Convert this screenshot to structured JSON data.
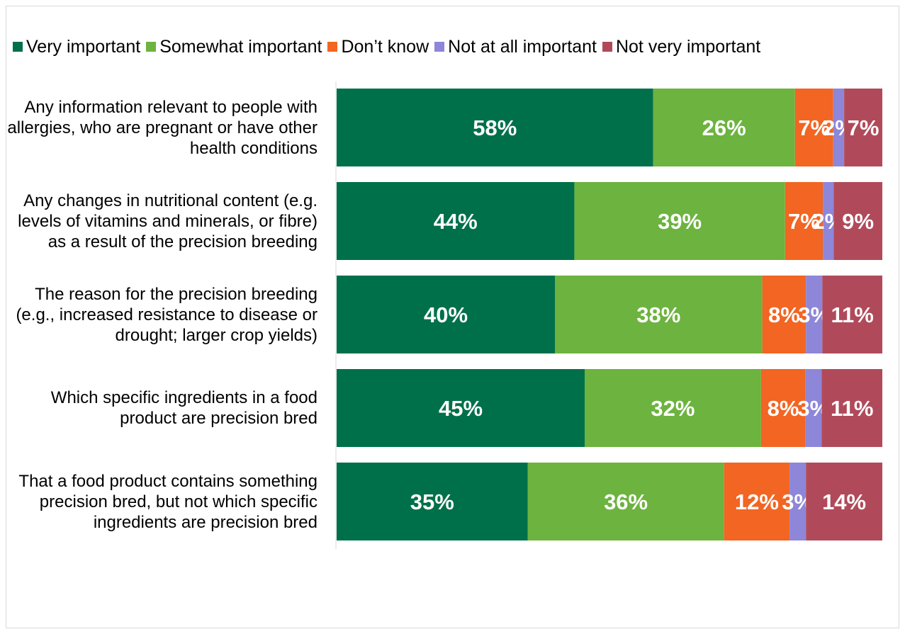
{
  "chart_data": {
    "type": "bar",
    "orientation": "horizontal",
    "stacked": true,
    "title": "",
    "xlabel": "",
    "ylabel": "",
    "xlim": [
      0,
      100
    ],
    "grid": false,
    "legend_position": "top",
    "categories": [
      "Any information relevant to people with allergies, who are pregnant or have other health conditions",
      "Any changes in nutritional content (e.g. levels of vitamins and minerals, or fibre) as a result of the precision breeding",
      "The reason for the precision breeding (e.g., increased resistance to disease or drought; larger crop yields)",
      "Which specific ingredients in a food product are precision bred",
      "That a food product contains something precision bred, but not which specific ingredients are precision bred"
    ],
    "series": [
      {
        "name": "Very important",
        "color": "#00704a",
        "values": [
          58,
          44,
          40,
          45,
          35
        ],
        "labels": [
          "58%",
          "44%",
          "40%",
          "45%",
          "35%"
        ]
      },
      {
        "name": "Somewhat important",
        "color": "#6db33f",
        "values": [
          26,
          39,
          38,
          32,
          36
        ],
        "labels": [
          "26%",
          "39%",
          "38%",
          "32%",
          "36%"
        ]
      },
      {
        "name": "Don’t know",
        "color": "#f26522",
        "values": [
          7,
          7,
          8,
          8,
          12
        ],
        "labels": [
          "7%",
          "7%",
          "8%",
          "8%",
          "12%"
        ]
      },
      {
        "name": "Not at all important",
        "color": "#8e86d8",
        "values": [
          2,
          2,
          3,
          3,
          3
        ],
        "labels": [
          "2%",
          "2%",
          "3%",
          "3%",
          "3%"
        ]
      },
      {
        "name": "Not very important",
        "color": "#b04a5a",
        "values": [
          7,
          9,
          11,
          11,
          14
        ],
        "labels": [
          "7%",
          "9%",
          "11%",
          "11%",
          "14%"
        ]
      }
    ]
  }
}
